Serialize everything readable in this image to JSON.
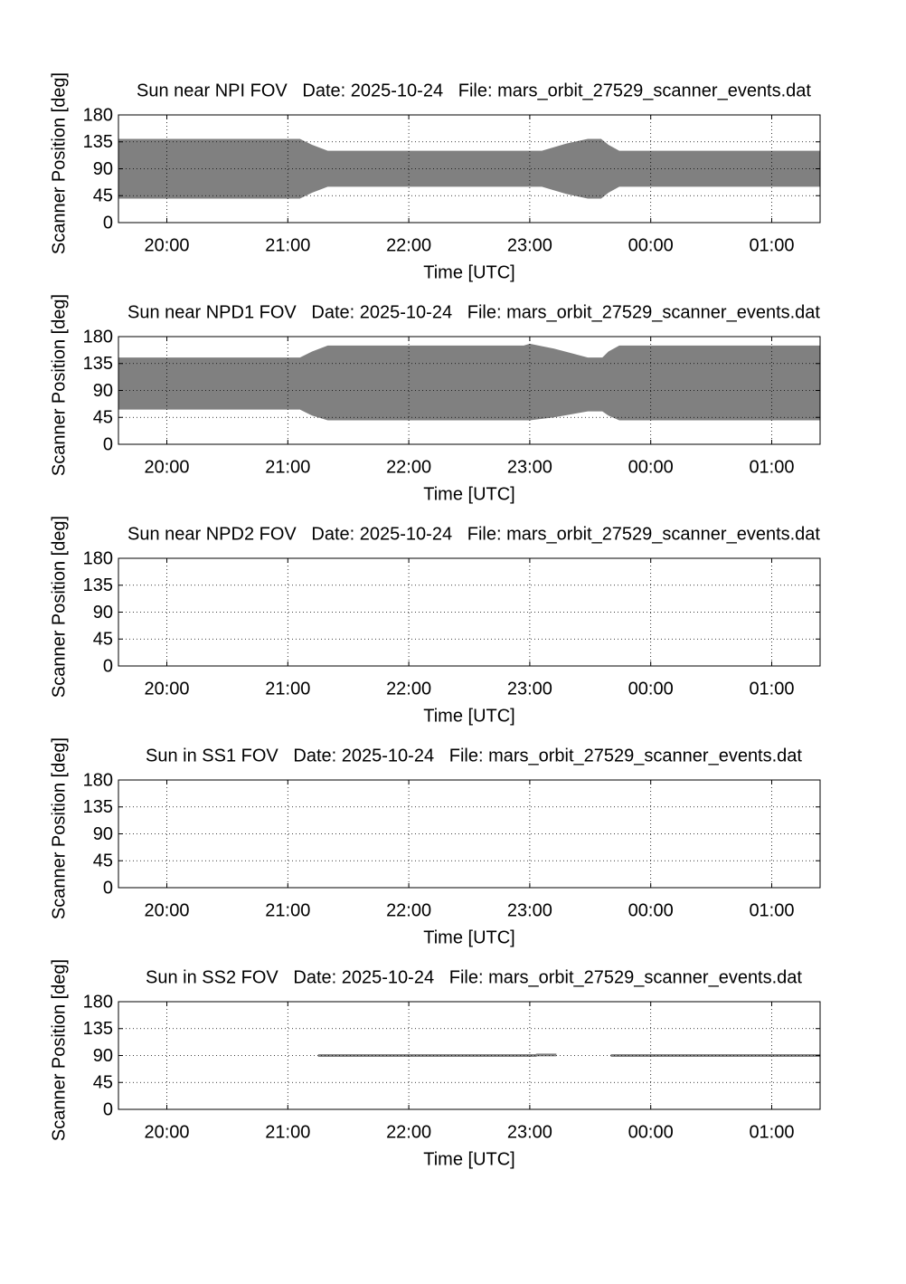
{
  "chart_data": [
    {
      "type": "band",
      "title": "Sun near NPI FOV   Date: 2025-10-24   File: mars_orbit_27529_scanner_events.dat",
      "xlabel": "Time [UTC]",
      "ylabel": "Scanner Position [deg]",
      "color": "#808080",
      "grid": true,
      "xlim": [
        19.6,
        25.4
      ],
      "ylim": [
        0,
        180
      ],
      "xticks": [
        {
          "value": 20,
          "label": "20:00"
        },
        {
          "value": 21,
          "label": "21:00"
        },
        {
          "value": 22,
          "label": "22:00"
        },
        {
          "value": 23,
          "label": "23:00"
        },
        {
          "value": 24,
          "label": "00:00"
        },
        {
          "value": 25,
          "label": "01:00"
        }
      ],
      "yticks": [
        0,
        45,
        90,
        135,
        180
      ],
      "x": [
        19.6,
        21.1,
        21.2,
        21.33,
        23.1,
        23.3,
        23.48,
        23.59,
        23.65,
        23.74,
        25.4
      ],
      "high": [
        140,
        140,
        130,
        120,
        120,
        132,
        140,
        140,
        130,
        120,
        120
      ],
      "low": [
        40,
        40,
        50,
        60,
        60,
        48,
        40,
        40,
        50,
        60,
        60
      ]
    },
    {
      "type": "band",
      "title": "Sun near NPD1 FOV   Date: 2025-10-24   File: mars_orbit_27529_scanner_events.dat",
      "xlabel": "Time [UTC]",
      "ylabel": "Scanner Position [deg]",
      "color": "#808080",
      "grid": true,
      "xlim": [
        19.6,
        25.4
      ],
      "ylim": [
        0,
        180
      ],
      "xticks": [
        {
          "value": 20,
          "label": "20:00"
        },
        {
          "value": 21,
          "label": "21:00"
        },
        {
          "value": 22,
          "label": "22:00"
        },
        {
          "value": 23,
          "label": "23:00"
        },
        {
          "value": 24,
          "label": "00:00"
        },
        {
          "value": 25,
          "label": "01:00"
        }
      ],
      "yticks": [
        0,
        45,
        90,
        135,
        180
      ],
      "x": [
        19.6,
        21.1,
        21.2,
        21.33,
        22.95,
        23.0,
        23.2,
        23.48,
        23.6,
        23.65,
        23.74,
        25.4
      ],
      "high": [
        145,
        145,
        155,
        165,
        165,
        168,
        160,
        145,
        145,
        155,
        165,
        165
      ],
      "low": [
        58,
        58,
        48,
        40,
        40,
        40,
        45,
        55,
        55,
        48,
        40,
        40
      ]
    },
    {
      "type": "band",
      "title": "Sun near NPD2 FOV   Date: 2025-10-24   File: mars_orbit_27529_scanner_events.dat",
      "xlabel": "Time [UTC]",
      "ylabel": "Scanner Position [deg]",
      "color": "#808080",
      "grid": true,
      "xlim": [
        19.6,
        25.4
      ],
      "ylim": [
        0,
        180
      ],
      "xticks": [
        {
          "value": 20,
          "label": "20:00"
        },
        {
          "value": 21,
          "label": "21:00"
        },
        {
          "value": 22,
          "label": "22:00"
        },
        {
          "value": 23,
          "label": "23:00"
        },
        {
          "value": 24,
          "label": "00:00"
        },
        {
          "value": 25,
          "label": "01:00"
        }
      ],
      "yticks": [
        0,
        45,
        90,
        135,
        180
      ]
    },
    {
      "type": "band",
      "title": "Sun in SS1 FOV   Date: 2025-10-24   File: mars_orbit_27529_scanner_events.dat",
      "xlabel": "Time [UTC]",
      "ylabel": "Scanner Position [deg]",
      "color": "#808080",
      "grid": true,
      "xlim": [
        19.6,
        25.4
      ],
      "ylim": [
        0,
        180
      ],
      "xticks": [
        {
          "value": 20,
          "label": "20:00"
        },
        {
          "value": 21,
          "label": "21:00"
        },
        {
          "value": 22,
          "label": "22:00"
        },
        {
          "value": 23,
          "label": "23:00"
        },
        {
          "value": 24,
          "label": "00:00"
        },
        {
          "value": 25,
          "label": "01:00"
        }
      ],
      "yticks": [
        0,
        45,
        90,
        135,
        180
      ]
    },
    {
      "type": "line",
      "title": "Sun in SS2 FOV   Date: 2025-10-24   File: mars_orbit_27529_scanner_events.dat",
      "xlabel": "Time [UTC]",
      "ylabel": "Scanner Position [deg]",
      "color": "#808080",
      "grid": true,
      "xlim": [
        19.6,
        25.4
      ],
      "ylim": [
        0,
        180
      ],
      "xticks": [
        {
          "value": 20,
          "label": "20:00"
        },
        {
          "value": 21,
          "label": "21:00"
        },
        {
          "value": 22,
          "label": "22:00"
        },
        {
          "value": 23,
          "label": "23:00"
        },
        {
          "value": 24,
          "label": "00:00"
        },
        {
          "value": 25,
          "label": "01:00"
        }
      ],
      "yticks": [
        0,
        45,
        90,
        135,
        180
      ],
      "x": [
        21.25,
        23.05,
        23.06,
        23.22,
        23.45,
        23.67,
        25.4
      ],
      "values": [
        90,
        90,
        91,
        91,
        null,
        90,
        90
      ]
    }
  ]
}
